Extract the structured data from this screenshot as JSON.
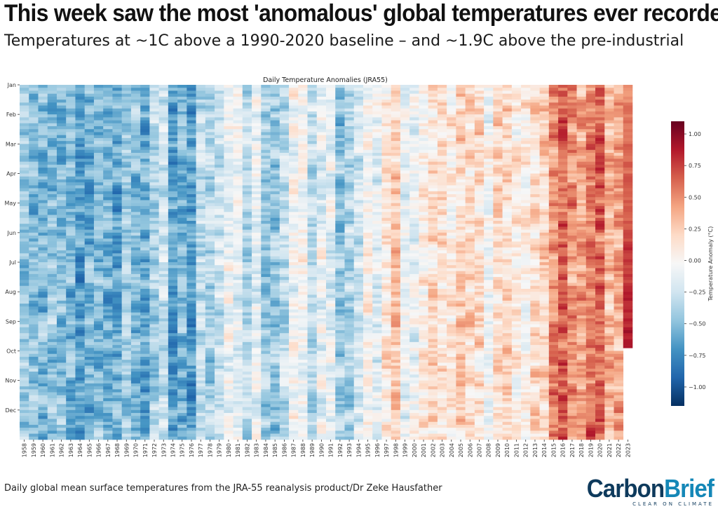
{
  "headline": "This week saw the most 'anomalous' global temperatures ever recorded",
  "subheadline": "Temperatures at ~1C above a 1990-2020 baseline – and ~1.9C above the pre-industrial",
  "footer_source": "Daily global mean surface temperatures from the JRA-55 reanalysis product/Dr Zeke Hausfather",
  "logo": {
    "carbon": "Carbon",
    "brief": "Brief",
    "tagline": "CLEAR ON CLIMATE"
  },
  "colors": {
    "cold": "#053061",
    "neutral": "#f7f7f7",
    "warm": "#67001f"
  },
  "chart_data": {
    "type": "heatmap",
    "title": "Daily Temperature Anomalies (JRA55)",
    "xlabel": "",
    "ylabel": "",
    "colorbar_label": "Temperature Anomaly (°C)",
    "colorbar_ticks": [
      "1.00",
      "0.75",
      "0.50",
      "0.25",
      "0.00",
      "−0.25",
      "−0.50",
      "−0.75",
      "−1.00"
    ],
    "colorbar_tick_values": [
      1.0,
      0.75,
      0.5,
      0.25,
      0.0,
      -0.25,
      -0.5,
      -0.75,
      -1.0
    ],
    "colorscale_range": [
      -1.15,
      1.1
    ],
    "colormap": "RdBu_r",
    "years": [
      "1958",
      "1959",
      "1960",
      "1961",
      "1962",
      "1963",
      "1964",
      "1965",
      "1966",
      "1967",
      "1968",
      "1969",
      "1970",
      "1971",
      "1972",
      "1973",
      "1974",
      "1975",
      "1976",
      "1977",
      "1978",
      "1979",
      "1980",
      "1981",
      "1982",
      "1983",
      "1984",
      "1985",
      "1986",
      "1987",
      "1988",
      "1989",
      "1990",
      "1991",
      "1992",
      "1993",
      "1994",
      "1995",
      "1996",
      "1997",
      "1998",
      "1999",
      "2000",
      "2001",
      "2002",
      "2003",
      "2004",
      "2005",
      "2006",
      "2007",
      "2008",
      "2009",
      "2010",
      "2011",
      "2012",
      "2013",
      "2014",
      "2015",
      "2016",
      "2017",
      "2018",
      "2019",
      "2020",
      "2021",
      "2022",
      "2023"
    ],
    "months": [
      "Jan",
      "Feb",
      "Mar",
      "Apr",
      "May",
      "Jun",
      "Jul",
      "Aug",
      "Sep",
      "Oct",
      "Nov",
      "Dec"
    ],
    "annual_mean_anomaly": [
      -0.45,
      -0.5,
      -0.53,
      -0.47,
      -0.52,
      -0.55,
      -0.62,
      -0.58,
      -0.5,
      -0.55,
      -0.6,
      -0.42,
      -0.5,
      -0.6,
      -0.38,
      -0.28,
      -0.65,
      -0.55,
      -0.68,
      -0.32,
      -0.4,
      -0.3,
      -0.12,
      -0.1,
      -0.35,
      -0.1,
      -0.42,
      -0.45,
      -0.32,
      -0.05,
      -0.05,
      -0.3,
      -0.1,
      -0.15,
      -0.45,
      -0.35,
      -0.22,
      0.0,
      -0.15,
      0.1,
      0.25,
      -0.1,
      -0.08,
      0.05,
      0.18,
      0.15,
      0.1,
      0.22,
      0.15,
      0.18,
      -0.05,
      0.15,
      0.2,
      0.05,
      0.1,
      0.18,
      0.25,
      0.5,
      0.65,
      0.5,
      0.4,
      0.55,
      0.62,
      0.32,
      0.38,
      0.7
    ],
    "last_year_data_through": "Sep"
  }
}
